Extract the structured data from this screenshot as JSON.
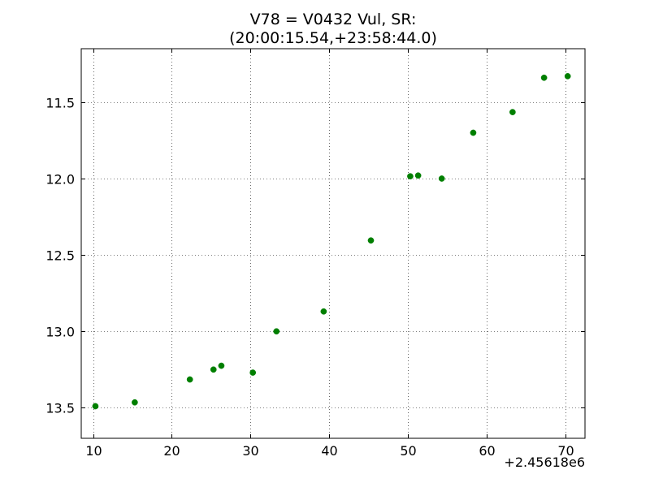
{
  "chart_data": {
    "type": "scatter",
    "title_lines": [
      "V78 = V0432 Vul, SR:",
      "(20:00:15.54,+23:58:44.0)"
    ],
    "xlabel": "",
    "ylabel": "",
    "x_offset_label": "+2.45618e6",
    "xlim": [
      8.5,
      72.5
    ],
    "ylim": [
      13.7,
      11.15
    ],
    "y_inverted": true,
    "grid": true,
    "marker_color": "#007f00",
    "x_ticks": [
      10,
      20,
      30,
      40,
      50,
      60,
      70
    ],
    "x_tick_labels": [
      "10",
      "20",
      "30",
      "40",
      "50",
      "60",
      "70"
    ],
    "y_ticks": [
      11.5,
      12.0,
      12.5,
      13.0,
      13.5
    ],
    "y_tick_labels": [
      "11.5",
      "12.0",
      "12.5",
      "13.0",
      "13.5"
    ],
    "points": [
      {
        "x": 10.3,
        "y": 13.49
      },
      {
        "x": 15.3,
        "y": 13.465
      },
      {
        "x": 22.3,
        "y": 13.315
      },
      {
        "x": 25.3,
        "y": 13.25
      },
      {
        "x": 26.3,
        "y": 13.225
      },
      {
        "x": 30.3,
        "y": 13.27
      },
      {
        "x": 33.3,
        "y": 13.0
      },
      {
        "x": 39.3,
        "y": 12.87
      },
      {
        "x": 45.3,
        "y": 12.405
      },
      {
        "x": 50.3,
        "y": 11.985
      },
      {
        "x": 51.3,
        "y": 11.98
      },
      {
        "x": 54.3,
        "y": 12.0
      },
      {
        "x": 58.3,
        "y": 11.7
      },
      {
        "x": 63.3,
        "y": 11.565
      },
      {
        "x": 67.3,
        "y": 11.34
      },
      {
        "x": 70.3,
        "y": 11.33
      }
    ]
  }
}
